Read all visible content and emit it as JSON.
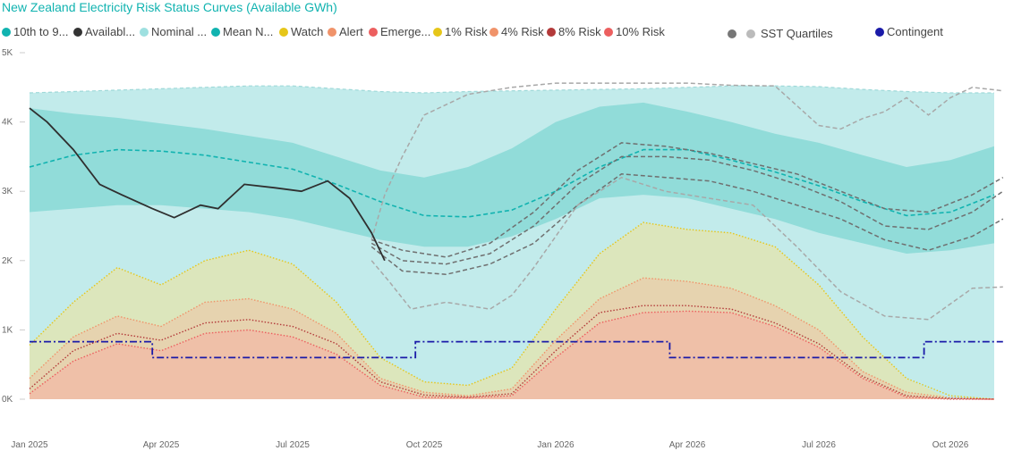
{
  "title": "New Zealand Electricity Risk Status Curves (Available GWh)",
  "legend": [
    {
      "label": "10th to 9...",
      "color": "#11b3b0"
    },
    {
      "label": "Availabl...",
      "color": "#333333"
    },
    {
      "label": "Nominal ...",
      "color": "#9ee0e0"
    },
    {
      "label": "Mean N...",
      "color": "#11b3b0"
    },
    {
      "label": "Watch",
      "color": "#e6c619"
    },
    {
      "label": "Alert",
      "color": "#f0936a"
    },
    {
      "label": "Emerge...",
      "color": "#ec5f5f"
    },
    {
      "label": "1% Risk",
      "color": "#e6c619"
    },
    {
      "label": "4% Risk",
      "color": "#f0936a"
    },
    {
      "label": "8% Risk",
      "color": "#b33a3a"
    },
    {
      "label": "10% Risk",
      "color": "#ec5f5f"
    },
    {
      "label": "SST Quartiles",
      "color": "#777777",
      "color2": "#bbbbbb"
    },
    {
      "label": "Contingent",
      "color": "#1a1aa8"
    }
  ],
  "chart_data": {
    "type": "area",
    "title": "New Zealand Electricity Risk Status Curves (Available GWh)",
    "x_tick_labels": [
      "Jan 2025",
      "Apr 2025",
      "Jul 2025",
      "Oct 2025",
      "Jan 2026",
      "Apr 2026",
      "Jul 2026",
      "Oct 2026"
    ],
    "y_tick_labels": [
      "0K",
      "1K",
      "2K",
      "3K",
      "4K",
      "5K"
    ],
    "ylim": [
      0,
      5000
    ],
    "x_months": [
      0,
      1,
      2,
      3,
      4,
      5,
      6,
      7,
      8,
      9,
      10,
      11,
      12,
      13,
      14,
      15,
      16,
      17,
      18,
      19,
      20,
      21,
      22
    ],
    "nominal_max": [
      4420,
      4440,
      4460,
      4480,
      4500,
      4520,
      4520,
      4480,
      4440,
      4420,
      4440,
      4450,
      4460,
      4470,
      4480,
      4500,
      4520,
      4520,
      4510,
      4470,
      4440,
      4420,
      4420
    ],
    "nominal_min": [
      0,
      0,
      0,
      0,
      0,
      0,
      0,
      0,
      0,
      0,
      0,
      0,
      0,
      0,
      0,
      0,
      0,
      0,
      0,
      0,
      0,
      0,
      0
    ],
    "band_10_90_upper": [
      4200,
      4120,
      4060,
      3980,
      3900,
      3800,
      3700,
      3500,
      3300,
      3200,
      3350,
      3620,
      4000,
      4220,
      4280,
      4150,
      4000,
      3830,
      3700,
      3520,
      3350,
      3450,
      3650
    ],
    "band_10_90_lower": [
      2700,
      2750,
      2800,
      2800,
      2750,
      2700,
      2600,
      2450,
      2300,
      2200,
      2200,
      2350,
      2600,
      2900,
      2950,
      2900,
      2750,
      2600,
      2400,
      2250,
      2100,
      2150,
      2250
    ],
    "mean_nominal": [
      3350,
      3520,
      3600,
      3580,
      3520,
      3420,
      3320,
      3100,
      2850,
      2650,
      2630,
      2730,
      3000,
      3350,
      3600,
      3600,
      3450,
      3280,
      3080,
      2850,
      2650,
      2700,
      2950
    ],
    "available": {
      "x": [
        0,
        0.4,
        1.0,
        1.6,
        2.1,
        2.8,
        3.3,
        3.9,
        4.3,
        4.9,
        5.6,
        6.2,
        6.8,
        7.3,
        7.8,
        8.1
      ],
      "y": [
        4200,
        4000,
        3600,
        3100,
        2950,
        2750,
        2620,
        2800,
        2750,
        3100,
        3050,
        3000,
        3150,
        2900,
        2400,
        2000
      ]
    },
    "watch": [
      780,
      1400,
      1900,
      1650,
      2000,
      2150,
      1950,
      1400,
      600,
      250,
      200,
      450,
      1300,
      2100,
      2550,
      2450,
      2400,
      2200,
      1650,
      900,
      300,
      0,
      0
    ],
    "alert": [
      300,
      900,
      1200,
      1050,
      1400,
      1450,
      1300,
      950,
      300,
      100,
      50,
      150,
      850,
      1450,
      1750,
      1700,
      1600,
      1350,
      1000,
      400,
      100,
      0,
      0
    ],
    "emergency": [
      80,
      550,
      800,
      700,
      950,
      1000,
      900,
      650,
      200,
      30,
      20,
      50,
      600,
      1100,
      1250,
      1270,
      1250,
      1050,
      750,
      300,
      30,
      0,
      0
    ],
    "risk_1": [
      780,
      1400,
      1900,
      1650,
      2000,
      2150,
      1950,
      1400,
      600,
      250,
      200,
      450,
      1300,
      2100,
      2550,
      2450,
      2400,
      2200,
      1650,
      900,
      300,
      50,
      0
    ],
    "risk_4": [
      300,
      900,
      1200,
      1050,
      1400,
      1450,
      1300,
      950,
      300,
      100,
      50,
      150,
      850,
      1450,
      1750,
      1700,
      1600,
      1350,
      1000,
      400,
      100,
      20,
      0
    ],
    "risk_8": [
      150,
      700,
      950,
      850,
      1100,
      1150,
      1050,
      800,
      250,
      60,
      30,
      80,
      700,
      1250,
      1350,
      1350,
      1300,
      1100,
      800,
      330,
      50,
      10,
      0
    ],
    "risk_10": [
      80,
      550,
      800,
      700,
      950,
      1000,
      900,
      650,
      200,
      30,
      20,
      50,
      600,
      1100,
      1250,
      1270,
      1250,
      1050,
      750,
      300,
      30,
      0,
      0
    ],
    "sst_quartiles": [
      {
        "x": [
          7.8,
          8.5,
          9.5,
          10.5,
          11.5,
          12.5,
          13.5,
          14.5,
          15.5,
          16.5,
          17.5,
          18.5,
          19.5,
          20.5,
          21.5,
          22.2
        ],
        "y": [
          2300,
          2150,
          2050,
          2250,
          2700,
          3300,
          3700,
          3650,
          3550,
          3400,
          3250,
          3000,
          2750,
          2700,
          2950,
          3200
        ]
      },
      {
        "x": [
          7.8,
          8.5,
          9.5,
          10.5,
          11.5,
          12.5,
          13.5,
          14.5,
          15.5,
          16.5,
          17.5,
          18.5,
          19.5,
          20.5,
          21.5,
          22.2
        ],
        "y": [
          2250,
          2000,
          1950,
          2100,
          2500,
          3100,
          3500,
          3500,
          3450,
          3300,
          3100,
          2850,
          2500,
          2450,
          2700,
          3000
        ]
      },
      {
        "x": [
          7.8,
          8.5,
          9.5,
          10.5,
          11.5,
          12.5,
          13.5,
          14.5,
          15.5,
          16.5,
          17.5,
          18.5,
          19.5,
          20.5,
          21.5,
          22.2
        ],
        "y": [
          2200,
          1850,
          1800,
          1950,
          2250,
          2800,
          3250,
          3200,
          3150,
          3000,
          2800,
          2600,
          2300,
          2150,
          2350,
          2600
        ]
      },
      {
        "x": [
          7.8,
          8.2,
          8.7,
          9.5,
          10.5,
          11.0,
          11.5,
          12.5,
          13.5,
          14.5,
          15.5,
          16.5,
          17.5,
          18.5,
          19.5,
          20.5,
          21.5,
          22.2
        ],
        "y": [
          2000,
          1700,
          1300,
          1400,
          1300,
          1500,
          1900,
          2800,
          3200,
          3000,
          2900,
          2800,
          2200,
          1550,
          1200,
          1150,
          1600,
          1620
        ]
      },
      {
        "x": [
          7.8,
          8.1,
          8.5,
          9.0,
          10.0,
          11.0,
          12.0,
          13.0,
          14.0,
          15.0,
          16.0,
          17.0,
          18.0,
          18.5,
          19.0,
          19.5,
          20.0,
          20.5,
          21.0,
          21.5,
          22.2
        ],
        "y": [
          2300,
          2950,
          3500,
          4100,
          4400,
          4500,
          4560,
          4560,
          4560,
          4560,
          4530,
          4520,
          3950,
          3900,
          4050,
          4150,
          4350,
          4100,
          4350,
          4500,
          4450
        ]
      }
    ],
    "contingent": {
      "x": [
        0,
        2.8,
        2.8,
        8.8,
        8.8,
        14.6,
        14.6,
        20.4,
        20.4,
        22.2
      ],
      "y": [
        830,
        830,
        600,
        600,
        830,
        830,
        600,
        600,
        830,
        830
      ]
    }
  }
}
